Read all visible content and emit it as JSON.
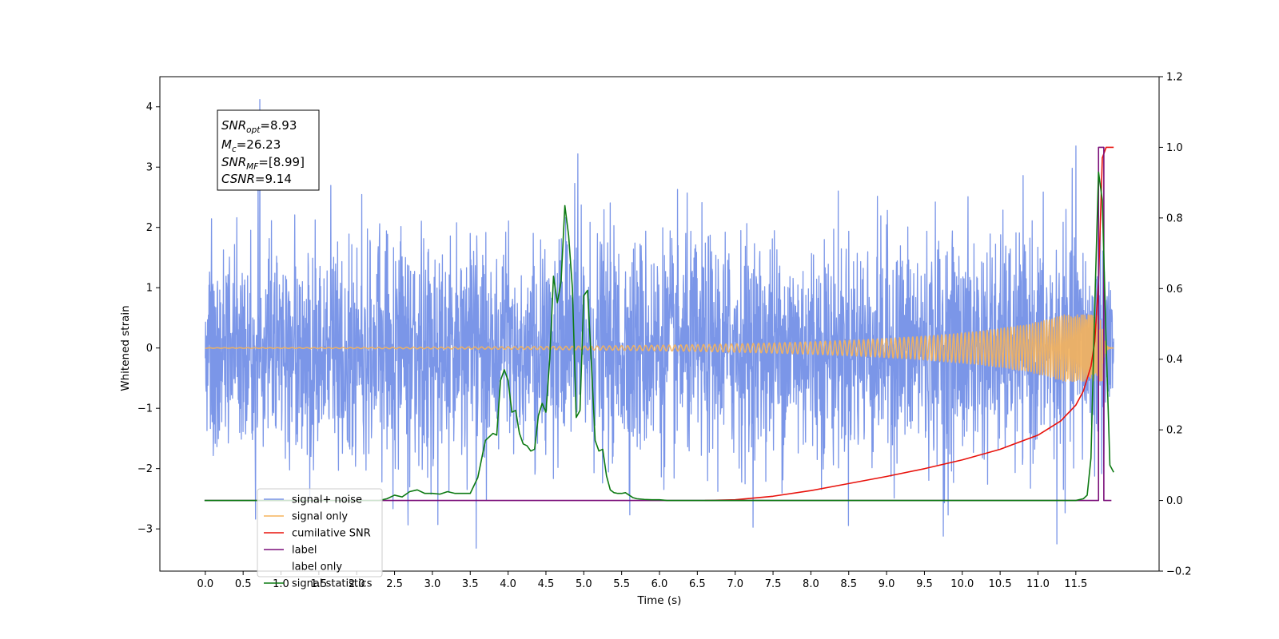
{
  "chart_data": {
    "type": "line",
    "xlabel": "Time (s)",
    "ylabel_left": "Whitened strain",
    "ylabel_right": "",
    "xlim": [
      -0.6,
      12.6
    ],
    "ylim_left": [
      -3.7,
      4.5
    ],
    "ylim_right": [
      -0.2,
      1.2
    ],
    "x_ticks": [
      "0.0",
      "0.5",
      "1.0",
      "1.5",
      "2.0",
      "2.5",
      "3.0",
      "3.5",
      "4.0",
      "4.5",
      "5.0",
      "5.5",
      "6.0",
      "6.5",
      "7.0",
      "7.5",
      "8.0",
      "8.5",
      "9.0",
      "9.5",
      "10.0",
      "10.5",
      "11.0",
      "11.5"
    ],
    "y_ticks_left": [
      "−3",
      "−2",
      "−1",
      "0",
      "1",
      "2",
      "3",
      "4"
    ],
    "y_ticks_right": [
      "−0.2",
      "0.0",
      "0.2",
      "0.4",
      "0.6",
      "0.8",
      "1.0",
      "1.2"
    ],
    "grid": false,
    "legend_position": "lower-left",
    "annotation": {
      "line1": {
        "sym": "SNR",
        "sub": "opt",
        "value": "=8.93"
      },
      "line2": {
        "sym": "M",
        "sub": "c",
        "value": "=26.23"
      },
      "line3": {
        "sym": "SNR",
        "sub": "MF",
        "value": "=[8.99]"
      },
      "line4": {
        "sym": "CSNR",
        "sub": "",
        "value": "=9.14"
      }
    },
    "series": [
      {
        "name": "signal+ noise",
        "axis": "left",
        "color": "#7b96e8",
        "kind": "noise",
        "t_range": [
          0.0,
          12.0
        ],
        "std": 0.92,
        "peaks": [
          [
            0.72,
            4.12
          ],
          [
            4.92,
            3.22
          ],
          [
            11.25,
            -3.25
          ],
          [
            3.58,
            -3.32
          ],
          [
            9.75,
            -3.12
          ],
          [
            11.5,
            3.35
          ]
        ]
      },
      {
        "name": "signal only",
        "axis": "left",
        "color": "#f5b35b",
        "kind": "chirp",
        "t_range": [
          0.0,
          12.0
        ],
        "merger_time": 11.85
      },
      {
        "name": "cumilative SNR",
        "axis": "right",
        "color": "#e8120c",
        "kind": "line",
        "x": [
          6.6,
          7.0,
          7.5,
          8.0,
          8.5,
          9.0,
          9.5,
          10.0,
          10.5,
          11.0,
          11.3,
          11.5,
          11.6,
          11.7,
          11.75,
          11.8,
          11.85,
          11.9,
          12.0
        ],
        "y": [
          0.0,
          0.002,
          0.012,
          0.028,
          0.048,
          0.068,
          0.09,
          0.115,
          0.145,
          0.185,
          0.225,
          0.27,
          0.31,
          0.38,
          0.45,
          0.62,
          0.97,
          1.0,
          1.0
        ]
      },
      {
        "name": "label",
        "axis": "right",
        "color": "#7b0f7a",
        "kind": "line",
        "x": [
          -0.01,
          11.8,
          11.8,
          11.87,
          11.87,
          11.97
        ],
        "y": [
          0.0,
          0.0,
          1.0,
          1.0,
          0.0,
          0.0
        ]
      },
      {
        "name": "label only",
        "axis": "right",
        "color": "#000000",
        "kind": "hidden",
        "x": [],
        "y": []
      },
      {
        "name": "signal statistics",
        "axis": "right",
        "color": "#0c7a12",
        "kind": "line",
        "x": [
          -0.01,
          2.3,
          2.4,
          2.5,
          2.6,
          2.7,
          2.8,
          2.9,
          3.0,
          3.1,
          3.2,
          3.3,
          3.4,
          3.5,
          3.6,
          3.7,
          3.8,
          3.85,
          3.9,
          3.95,
          4.0,
          4.05,
          4.1,
          4.15,
          4.2,
          4.25,
          4.3,
          4.35,
          4.4,
          4.45,
          4.5,
          4.55,
          4.6,
          4.65,
          4.7,
          4.75,
          4.8,
          4.85,
          4.9,
          4.95,
          5.0,
          5.05,
          5.1,
          5.15,
          5.2,
          5.25,
          5.3,
          5.35,
          5.4,
          5.45,
          5.5,
          5.55,
          5.6,
          5.65,
          5.7,
          5.8,
          5.9,
          6.0,
          6.1,
          6.2,
          6.5,
          7.0,
          8.0,
          9.0,
          10.0,
          11.0,
          11.5,
          11.6,
          11.65,
          11.7,
          11.75,
          11.8,
          11.85,
          11.9,
          11.95,
          12.0
        ],
        "y": [
          0.0,
          0.0,
          0.005,
          0.015,
          0.01,
          0.025,
          0.03,
          0.02,
          0.02,
          0.018,
          0.025,
          0.02,
          0.02,
          0.02,
          0.065,
          0.17,
          0.19,
          0.185,
          0.34,
          0.37,
          0.34,
          0.25,
          0.255,
          0.19,
          0.16,
          0.155,
          0.14,
          0.145,
          0.24,
          0.275,
          0.25,
          0.4,
          0.635,
          0.56,
          0.62,
          0.835,
          0.75,
          0.6,
          0.235,
          0.255,
          0.58,
          0.595,
          0.39,
          0.17,
          0.14,
          0.145,
          0.07,
          0.03,
          0.022,
          0.02,
          0.02,
          0.022,
          0.015,
          0.008,
          0.005,
          0.003,
          0.002,
          0.002,
          0.0,
          0.0,
          0.0,
          0.0,
          0.0,
          0.0,
          0.0,
          0.0,
          0.0,
          0.005,
          0.015,
          0.12,
          0.55,
          0.93,
          0.85,
          0.45,
          0.1,
          0.08
        ]
      }
    ]
  }
}
